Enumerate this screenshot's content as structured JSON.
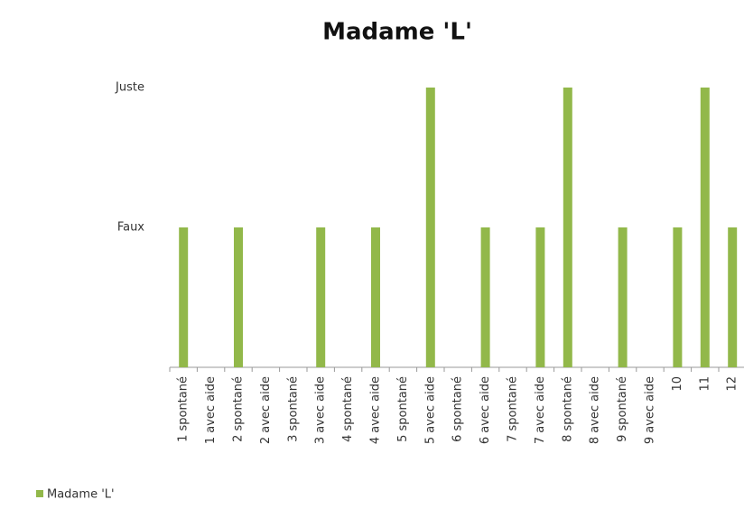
{
  "chart_data": {
    "type": "bar",
    "title": "Madame 'L'",
    "categories": [
      "1 spontané",
      "1 avec aide",
      "2 spontané",
      "2 avec aide",
      "3 spontané",
      "3 avec aide",
      "4 spontané",
      "4 avec aide",
      "5 spontané",
      "5 avec aide",
      "6 spontané",
      "6 avec aide",
      "7 spontané",
      "7 avec aide",
      "8 spontané",
      "8 avec aide",
      "9 spontané",
      "9 avec aide",
      "10",
      "11",
      "12"
    ],
    "series": [
      {
        "name": "Madame 'L'",
        "color": "#92b84a",
        "values": [
          1,
          0,
          1,
          0,
          0,
          1,
          0,
          1,
          0,
          2,
          0,
          1,
          0,
          1,
          2,
          0,
          1,
          0,
          1,
          2,
          1
        ]
      }
    ],
    "ylim": [
      0,
      2
    ],
    "yticks": [
      {
        "value": 1,
        "label": "Faux"
      },
      {
        "value": 2,
        "label": "Juste"
      }
    ],
    "legend": "bottom-left"
  }
}
